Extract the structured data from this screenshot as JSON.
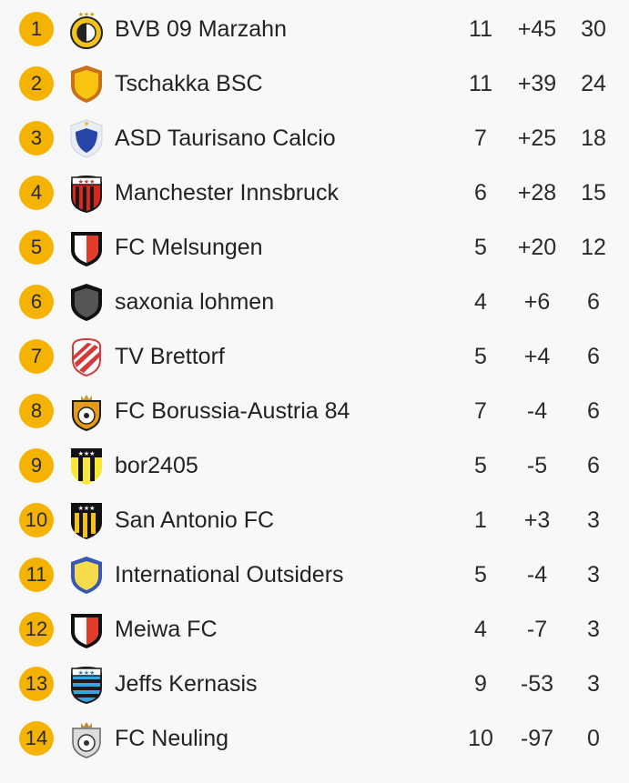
{
  "standings": [
    {
      "rank": "1",
      "team": "BVB 09 Marzahn",
      "played": "11",
      "diff": "+45",
      "points": "30",
      "crest": "crest-round-yellow-black"
    },
    {
      "rank": "2",
      "team": "Tschakka BSC",
      "played": "11",
      "diff": "+39",
      "points": "24",
      "crest": "crest-shield-orange-yellow"
    },
    {
      "rank": "3",
      "team": "ASD Taurisano Calcio",
      "played": "7",
      "diff": "+25",
      "points": "18",
      "crest": "crest-shield-blue-white"
    },
    {
      "rank": "4",
      "team": "Manchester Innsbruck",
      "played": "6",
      "diff": "+28",
      "points": "15",
      "crest": "crest-stripes-red-black"
    },
    {
      "rank": "5",
      "team": "FC Melsungen",
      "played": "5",
      "diff": "+20",
      "points": "12",
      "crest": "crest-shield-red-white"
    },
    {
      "rank": "6",
      "team": "saxonia lohmen",
      "played": "4",
      "diff": "+6",
      "points": "6",
      "crest": "crest-shield-black-grey"
    },
    {
      "rank": "7",
      "team": "TV Brettorf",
      "played": "5",
      "diff": "+4",
      "points": "6",
      "crest": "crest-diagonal-red-white"
    },
    {
      "rank": "8",
      "team": "FC Borussia-Austria 84",
      "played": "7",
      "diff": "-4",
      "points": "6",
      "crest": "crest-ball-orange-black"
    },
    {
      "rank": "9",
      "team": "bor2405",
      "played": "5",
      "diff": "-5",
      "points": "6",
      "crest": "crest-stripes-yellow-black"
    },
    {
      "rank": "10",
      "team": "San Antonio FC",
      "played": "1",
      "diff": "+3",
      "points": "3",
      "crest": "crest-stripes-black-yellow"
    },
    {
      "rank": "11",
      "team": "International Outsiders",
      "played": "5",
      "diff": "-4",
      "points": "3",
      "crest": "crest-shield-blue-yellow"
    },
    {
      "rank": "12",
      "team": "Meiwa FC",
      "played": "4",
      "diff": "-7",
      "points": "3",
      "crest": "crest-shield-red-white"
    },
    {
      "rank": "13",
      "team": "Jeffs Kernasis",
      "played": "9",
      "diff": "-53",
      "points": "3",
      "crest": "crest-stripes-blue-black"
    },
    {
      "rank": "14",
      "team": "FC Neuling",
      "played": "10",
      "diff": "-97",
      "points": "0",
      "crest": "crest-ball-grey-white"
    }
  ],
  "colors": {
    "rank_badge": "#f5b301",
    "background": "#f8f8f9",
    "text": "#222222"
  }
}
